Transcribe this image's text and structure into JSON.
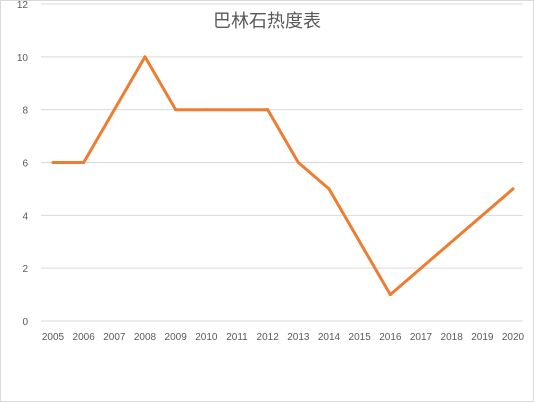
{
  "chart_data": {
    "type": "line",
    "title": "巴林石热度表",
    "xlabel": "",
    "ylabel": "",
    "x": [
      "2005",
      "2006",
      "2007",
      "2008",
      "2009",
      "2010",
      "2011",
      "2012",
      "2013",
      "2014",
      "2015",
      "2016",
      "2017",
      "2018",
      "2019",
      "2020"
    ],
    "series": [
      {
        "color": "#ED7D31",
        "values": [
          6,
          6,
          null,
          10,
          8,
          8,
          null,
          8,
          6,
          5,
          null,
          1,
          null,
          null,
          null,
          5
        ]
      }
    ],
    "ylim": [
      0,
      12
    ],
    "yticks": [
      0,
      2,
      4,
      6,
      8,
      10,
      12
    ],
    "grid": true,
    "legend": "none",
    "colors": {
      "line": "#ED7D31",
      "grid": "#d9d9d9",
      "text": "#595959"
    }
  }
}
